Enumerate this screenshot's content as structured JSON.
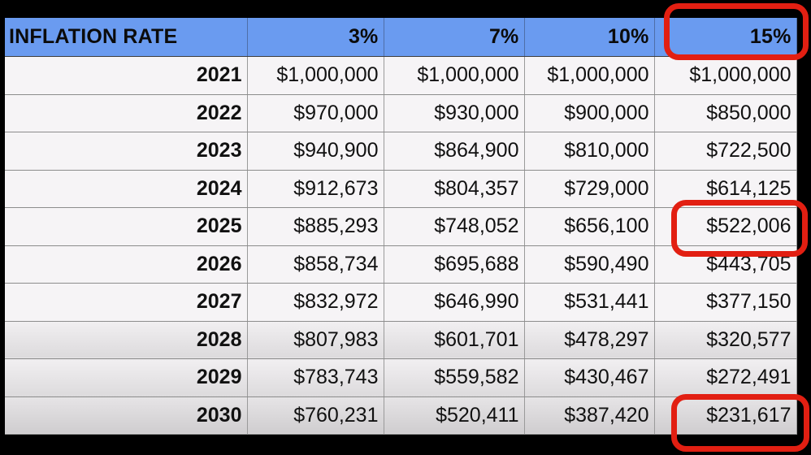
{
  "chart_data": {
    "type": "table",
    "columns": [
      "INFLATION RATE",
      "3%",
      "7%",
      "10%",
      "15%"
    ],
    "rows": [
      {
        "year": "2021",
        "values": [
          "$1,000,000",
          "$1,000,000",
          "$1,000,000",
          "$1,000,000"
        ]
      },
      {
        "year": "2022",
        "values": [
          "$970,000",
          "$930,000",
          "$900,000",
          "$850,000"
        ]
      },
      {
        "year": "2023",
        "values": [
          "$940,900",
          "$864,900",
          "$810,000",
          "$722,500"
        ]
      },
      {
        "year": "2024",
        "values": [
          "$912,673",
          "$804,357",
          "$729,000",
          "$614,125"
        ]
      },
      {
        "year": "2025",
        "values": [
          "$885,293",
          "$748,052",
          "$656,100",
          "$522,006"
        ]
      },
      {
        "year": "2026",
        "values": [
          "$858,734",
          "$695,688",
          "$590,490",
          "$443,705"
        ]
      },
      {
        "year": "2027",
        "values": [
          "$832,972",
          "$646,990",
          "$531,441",
          "$377,150"
        ]
      },
      {
        "year": "2028",
        "values": [
          "$807,983",
          "$601,701",
          "$478,297",
          "$320,577"
        ]
      },
      {
        "year": "2029",
        "values": [
          "$783,743",
          "$559,582",
          "$430,467",
          "$272,491"
        ]
      },
      {
        "year": "2030",
        "values": [
          "$760,231",
          "$520,411",
          "$387,420",
          "$231,617"
        ]
      }
    ],
    "highlighted_cells": [
      "15%",
      "2025 15%",
      "2030 15%"
    ]
  },
  "colors": {
    "header_background": "#6a9bf0",
    "highlight_outline": "#e21f12",
    "page_background": "#000000"
  }
}
